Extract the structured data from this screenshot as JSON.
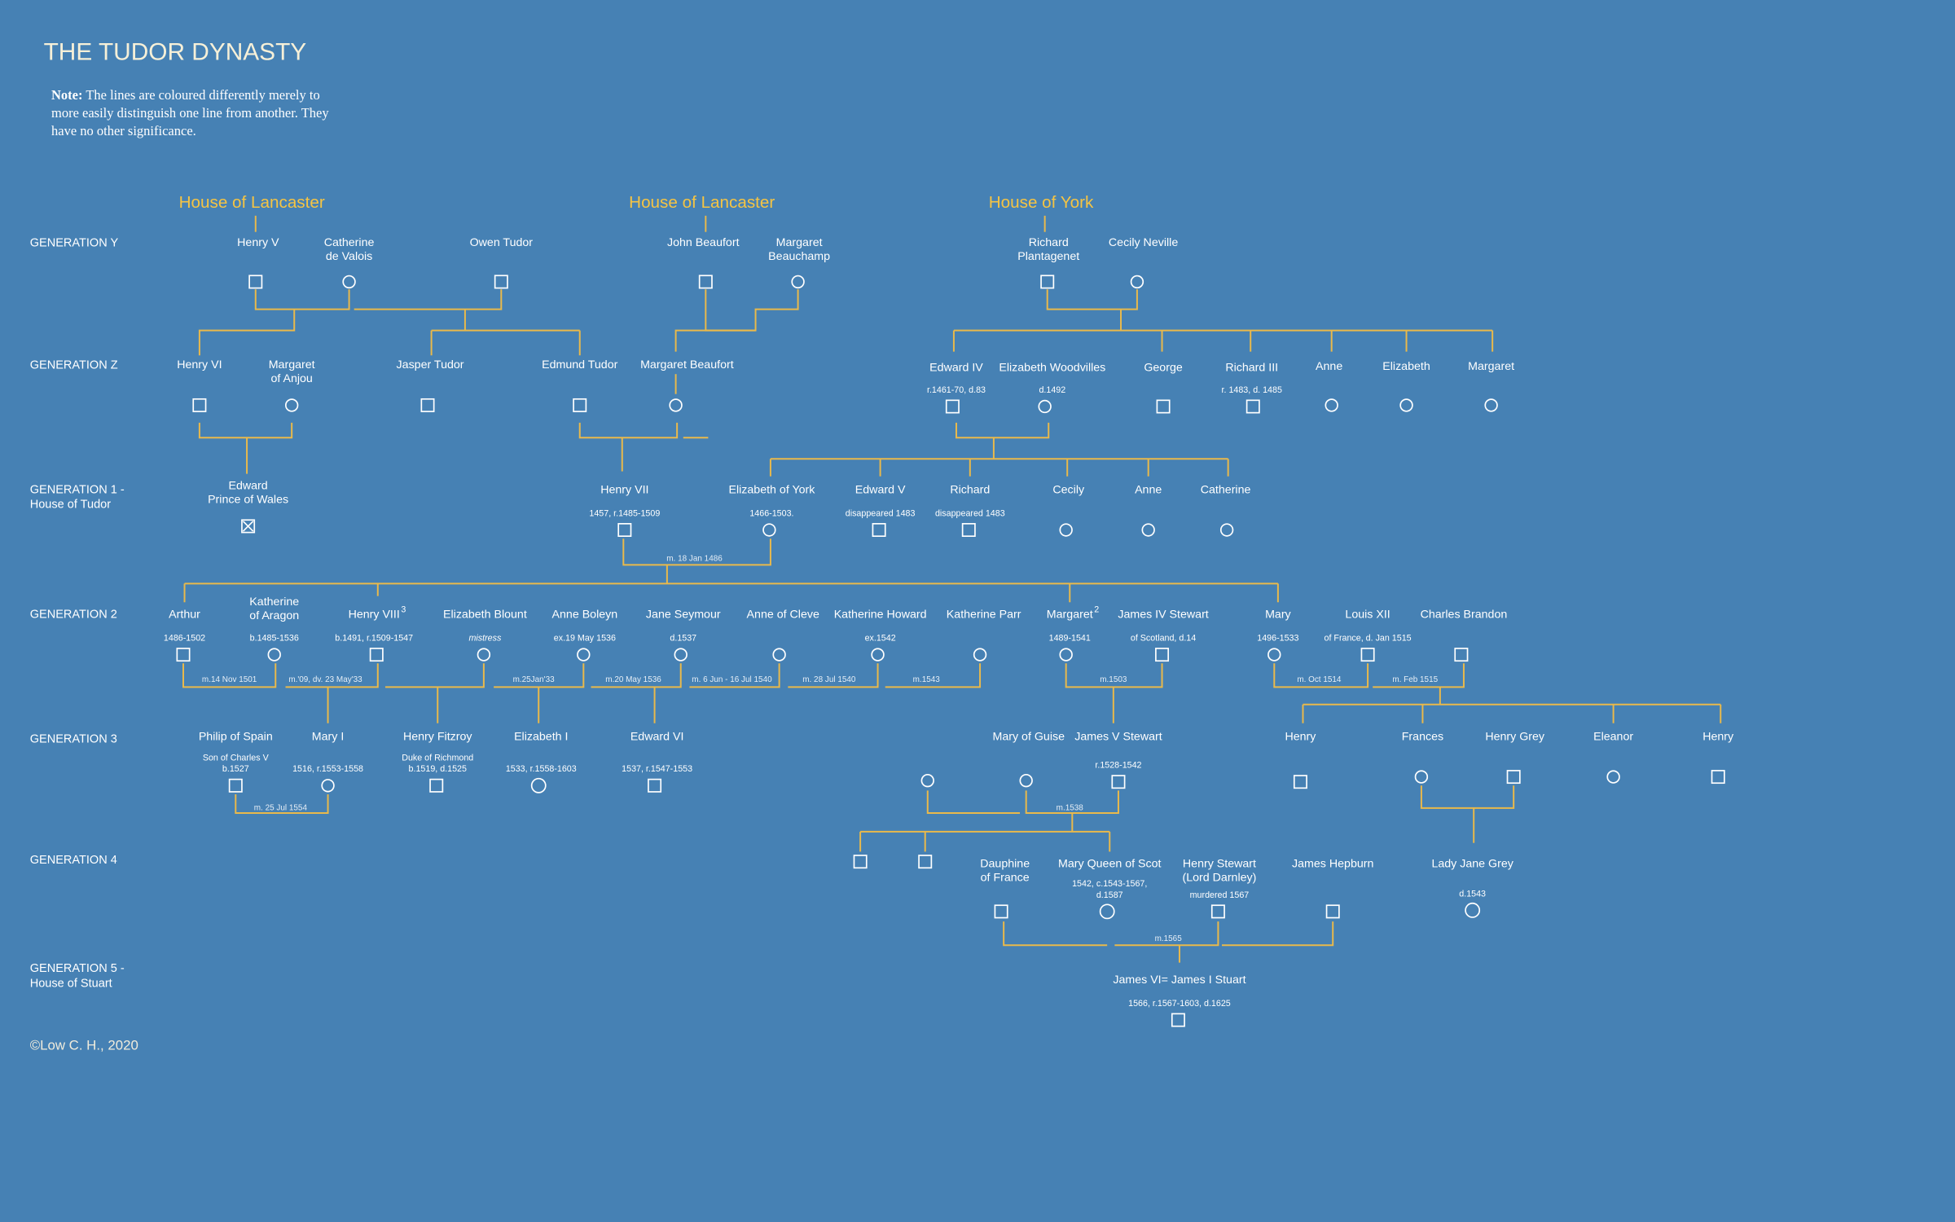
{
  "title": "THE TUDOR DYNASTY",
  "note": {
    "label": "Note:",
    "text": "The lines are coloured differently merely to more easily distinguish one line from another. They have no other significance."
  },
  "houses": [
    "House of Lancaster",
    "House of Lancaster",
    "House of York"
  ],
  "generations": [
    [
      "GENERATION Y"
    ],
    [
      "GENERATION Z"
    ],
    [
      "GENERATION 1 -",
      "House of Tudor"
    ],
    [
      "GENERATION 2"
    ],
    [
      "GENERATION 3"
    ],
    [
      "GENERATION 4"
    ],
    [
      "GENERATION 5 -",
      "House of Stuart"
    ]
  ],
  "nodes": [
    {
      "name": [
        "Henry V"
      ]
    },
    {
      "name": [
        "Catherine",
        "de Valois"
      ]
    },
    {
      "name": [
        "Owen Tudor"
      ]
    },
    {
      "name": [
        "John Beaufort"
      ]
    },
    {
      "name": [
        "Margaret",
        "Beauchamp"
      ]
    },
    {
      "name": [
        "Richard",
        "Plantagenet"
      ]
    },
    {
      "name": [
        "Cecily Neville"
      ]
    },
    {
      "name": [
        "Henry VI"
      ]
    },
    {
      "name": [
        "Margaret",
        "of Anjou"
      ]
    },
    {
      "name": [
        "Jasper Tudor"
      ]
    },
    {
      "name": [
        "Edmund Tudor"
      ]
    },
    {
      "name": [
        "Margaret Beaufort"
      ]
    },
    {
      "name": [
        "Edward IV"
      ],
      "dates": [
        "r.1461-70, d.83"
      ]
    },
    {
      "name": [
        "Elizabeth Woodvilles"
      ],
      "dates": [
        "d.1492"
      ]
    },
    {
      "name": [
        "George"
      ]
    },
    {
      "name": [
        "Richard III"
      ],
      "dates": [
        "r. 1483, d. 1485"
      ]
    },
    {
      "name": [
        "Anne"
      ]
    },
    {
      "name": [
        "Elizabeth"
      ]
    },
    {
      "name": [
        "Margaret"
      ]
    },
    {
      "name": [
        "Edward",
        "Prince of Wales"
      ]
    },
    {
      "name": [
        "Henry VII"
      ],
      "dates": [
        "1457, r.1485-1509"
      ]
    },
    {
      "name": [
        "Elizabeth of York"
      ],
      "dates": [
        "1466-1503."
      ]
    },
    {
      "name": [
        "Edward V"
      ],
      "dates": [
        "disappeared 1483"
      ]
    },
    {
      "name": [
        "Richard"
      ],
      "dates": [
        "disappeared 1483"
      ]
    },
    {
      "name": [
        "Cecily"
      ]
    },
    {
      "name": [
        "Anne"
      ]
    },
    {
      "name": [
        "Catherine"
      ]
    },
    {
      "name": [
        "Arthur"
      ],
      "dates": [
        "1486-1502"
      ]
    },
    {
      "name": [
        "Katherine",
        "of Aragon"
      ],
      "dates": [
        "b.1485-1536"
      ]
    },
    {
      "name": [
        "Henry VIII"
      ],
      "sup": "3",
      "dates": [
        "b.1491, r.1509-1547"
      ]
    },
    {
      "name": [
        "Elizabeth Blount"
      ],
      "dates": [
        "mistress"
      ]
    },
    {
      "name": [
        "Anne Boleyn"
      ],
      "dates": [
        "ex.19 May 1536"
      ]
    },
    {
      "name": [
        "Jane Seymour"
      ],
      "dates": [
        "d.1537"
      ]
    },
    {
      "name": [
        "Anne of Cleve"
      ]
    },
    {
      "name": [
        "Katherine Howard"
      ],
      "dates": [
        "ex.1542"
      ]
    },
    {
      "name": [
        "Katherine Parr"
      ]
    },
    {
      "name": [
        "Margaret"
      ],
      "sup": "2",
      "dates": [
        "1489-1541"
      ]
    },
    {
      "name": [
        "James IV Stewart"
      ],
      "dates": [
        "of Scotland, d.14"
      ]
    },
    {
      "name": [
        "Mary"
      ],
      "dates": [
        "1496-1533"
      ]
    },
    {
      "name": [
        "Louis XII"
      ],
      "dates": [
        "of France, d. Jan 1515"
      ]
    },
    {
      "name": [
        "Charles Brandon"
      ]
    },
    {
      "name": [
        "Philip of Spain"
      ],
      "dates": [
        "Son of Charles V",
        "b.1527"
      ]
    },
    {
      "name": [
        "Mary I"
      ],
      "dates": [
        "1516, r.1553-1558"
      ]
    },
    {
      "name": [
        "Henry Fitzroy"
      ],
      "dates": [
        "Duke of Richmond",
        "b.1519, d.1525"
      ]
    },
    {
      "name": [
        "Elizabeth I"
      ],
      "dates": [
        "1533, r.1558-1603"
      ]
    },
    {
      "name": [
        "Edward VI"
      ],
      "dates": [
        "1537, r.1547-1553"
      ]
    },
    {
      "name": [
        "Mary of Guise"
      ]
    },
    {
      "name": [
        "James V Stewart"
      ],
      "dates": [
        "r.1528-1542"
      ]
    },
    {
      "name": [
        "Henry"
      ]
    },
    {
      "name": [
        "Frances"
      ]
    },
    {
      "name": [
        "Henry Grey"
      ]
    },
    {
      "name": [
        "Eleanor"
      ]
    },
    {
      "name": [
        "Henry"
      ]
    },
    {
      "name": [
        "Dauphine",
        "of France"
      ]
    },
    {
      "name": [
        "Mary Queen of Scot"
      ],
      "dates": [
        "1542, c.1543-1567,",
        "d.1587"
      ]
    },
    {
      "name": [
        "Henry Stewart",
        "(Lord Darnley)"
      ],
      "dates": [
        "murdered 1567"
      ]
    },
    {
      "name": [
        "James Hepburn"
      ]
    },
    {
      "name": [
        "Lady Jane Grey"
      ],
      "dates": [
        "d.1543"
      ]
    },
    {
      "name": [
        "James VI= James I Stuart"
      ],
      "dates": [
        "1566, r.1567-1603, d.1625"
      ]
    }
  ],
  "marriages": [
    "m. 18 Jan 1486",
    "m.14 Nov 1501",
    "m.'09, dv. 23 May'33",
    "m.25Jan'33",
    "m.20 May 1536",
    "m. 6 Jun - 16 Jul 1540",
    "m. 28 Jul 1540",
    "m.1543",
    "m.1503",
    "m. Oct 1514",
    "m. Feb 1515",
    "m. 25 Jul 1554",
    "m.1538",
    "m.1565"
  ],
  "copyright": "©Low C. H., 2020"
}
